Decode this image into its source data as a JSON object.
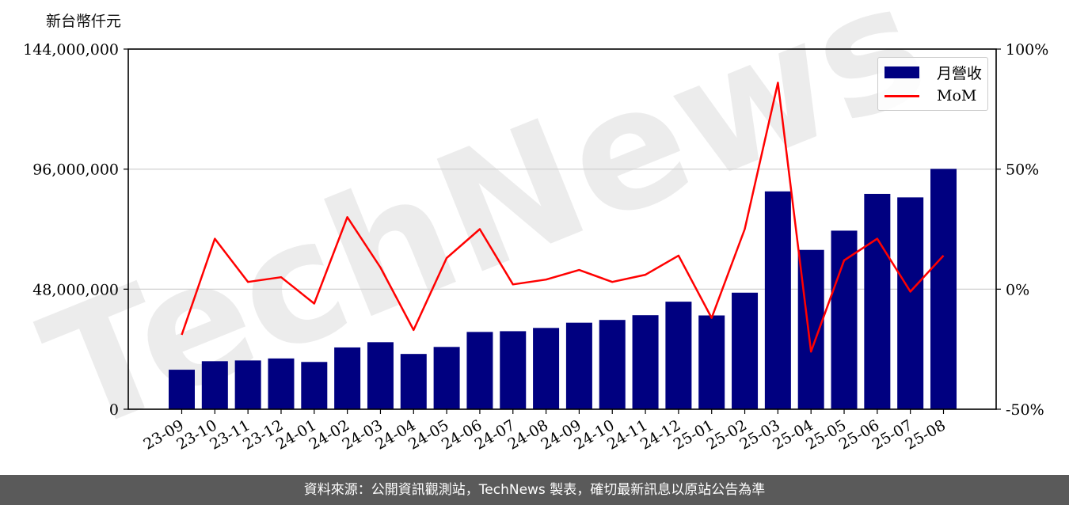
{
  "chart_data": {
    "type": "bar",
    "ylabel": "新台幣仟元",
    "categories": [
      "23-09",
      "23-10",
      "23-11",
      "23-12",
      "24-01",
      "24-02",
      "24-03",
      "24-04",
      "24-05",
      "24-06",
      "24-07",
      "24-08",
      "24-09",
      "24-10",
      "24-11",
      "24-12",
      "25-01",
      "25-02",
      "25-03",
      "25-04",
      "25-05",
      "25-06",
      "25-07",
      "25-08"
    ],
    "series": [
      {
        "name": "月營收",
        "kind": "bar",
        "axis": "left",
        "color": "#000080",
        "values": [
          15800000,
          19200000,
          19500000,
          20300000,
          18900000,
          24700000,
          26800000,
          22100000,
          24900000,
          30900000,
          31200000,
          32500000,
          34600000,
          35700000,
          37600000,
          43000000,
          37500000,
          46600000,
          87100000,
          63700000,
          71400000,
          86100000,
          84700000,
          96100000
        ]
      },
      {
        "name": "MoM",
        "kind": "line",
        "axis": "right",
        "color": "#ff0000",
        "values": [
          -19,
          21,
          3,
          5,
          -6,
          30,
          9,
          -17,
          13,
          25,
          2,
          4,
          8,
          3,
          6,
          14,
          -12,
          25,
          86,
          -26,
          12,
          21,
          -1,
          14
        ]
      }
    ],
    "left_axis": {
      "ylim": [
        0,
        144000000
      ],
      "ticks": [
        "0",
        "48,000,000",
        "96,000,000",
        "144,000,000"
      ],
      "tick_values": [
        0,
        48000000,
        96000000,
        144000000
      ]
    },
    "right_axis": {
      "ylim": [
        -50,
        100
      ],
      "ticks": [
        "-50%",
        "0%",
        "50%",
        "100%"
      ],
      "tick_values": [
        -50,
        0,
        50,
        100
      ]
    },
    "grid": "horizontal",
    "legend": "top-right",
    "watermark": "TechNews"
  },
  "footer": {
    "text": "資料來源：公開資訊觀測站，TechNews 製表，確切最新訊息以原站公告為準"
  }
}
